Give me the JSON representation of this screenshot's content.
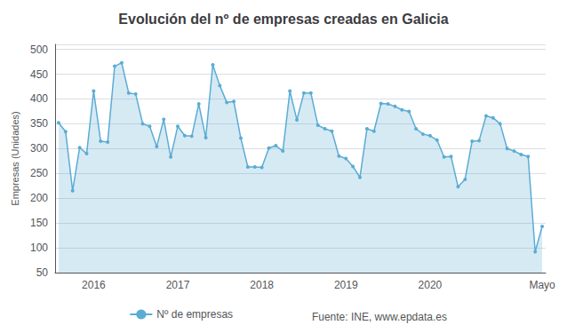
{
  "chart_data": {
    "type": "area",
    "title": "Evolución del nº de empresas creadas en Galicia",
    "y_label": "Empresas (Unidades)",
    "annotations": [
      "Fuente: INE, www.epdata.es"
    ],
    "categories": [
      null,
      null,
      null,
      null,
      null,
      "2016",
      null,
      null,
      null,
      null,
      null,
      null,
      null,
      null,
      null,
      null,
      null,
      "2017",
      null,
      null,
      null,
      null,
      null,
      null,
      null,
      null,
      null,
      null,
      null,
      "2018",
      null,
      null,
      null,
      null,
      null,
      null,
      null,
      null,
      null,
      null,
      null,
      "2019",
      null,
      null,
      null,
      null,
      null,
      null,
      null,
      null,
      null,
      null,
      null,
      "2020",
      null,
      null,
      null,
      null,
      null,
      null,
      null,
      null,
      null,
      null,
      null,
      null,
      null,
      null,
      null,
      "Mayo"
    ],
    "series": [
      {
        "name": "Nº de empresas",
        "color": "#5BACD4",
        "marker": "circle",
        "values": [
          352,
          334,
          215,
          302,
          290,
          416,
          315,
          313,
          466,
          473,
          412,
          410,
          350,
          345,
          304,
          359,
          283,
          345,
          326,
          325,
          390,
          322,
          469,
          427,
          393,
          395,
          321,
          263,
          263,
          262,
          301,
          306,
          295,
          416,
          358,
          412,
          412,
          347,
          340,
          335,
          285,
          280,
          264,
          242,
          340,
          335,
          391,
          390,
          385,
          378,
          375,
          340,
          329,
          326,
          317,
          283,
          284,
          223,
          238,
          315,
          316,
          366,
          362,
          350,
          300,
          295,
          288,
          284,
          92,
          143
        ]
      }
    ],
    "ylim": [
      50,
      510
    ],
    "yticks": [
      50,
      100,
      150,
      200,
      250,
      300,
      350,
      400,
      450,
      500
    ],
    "grid": true,
    "legend": "bottom"
  }
}
